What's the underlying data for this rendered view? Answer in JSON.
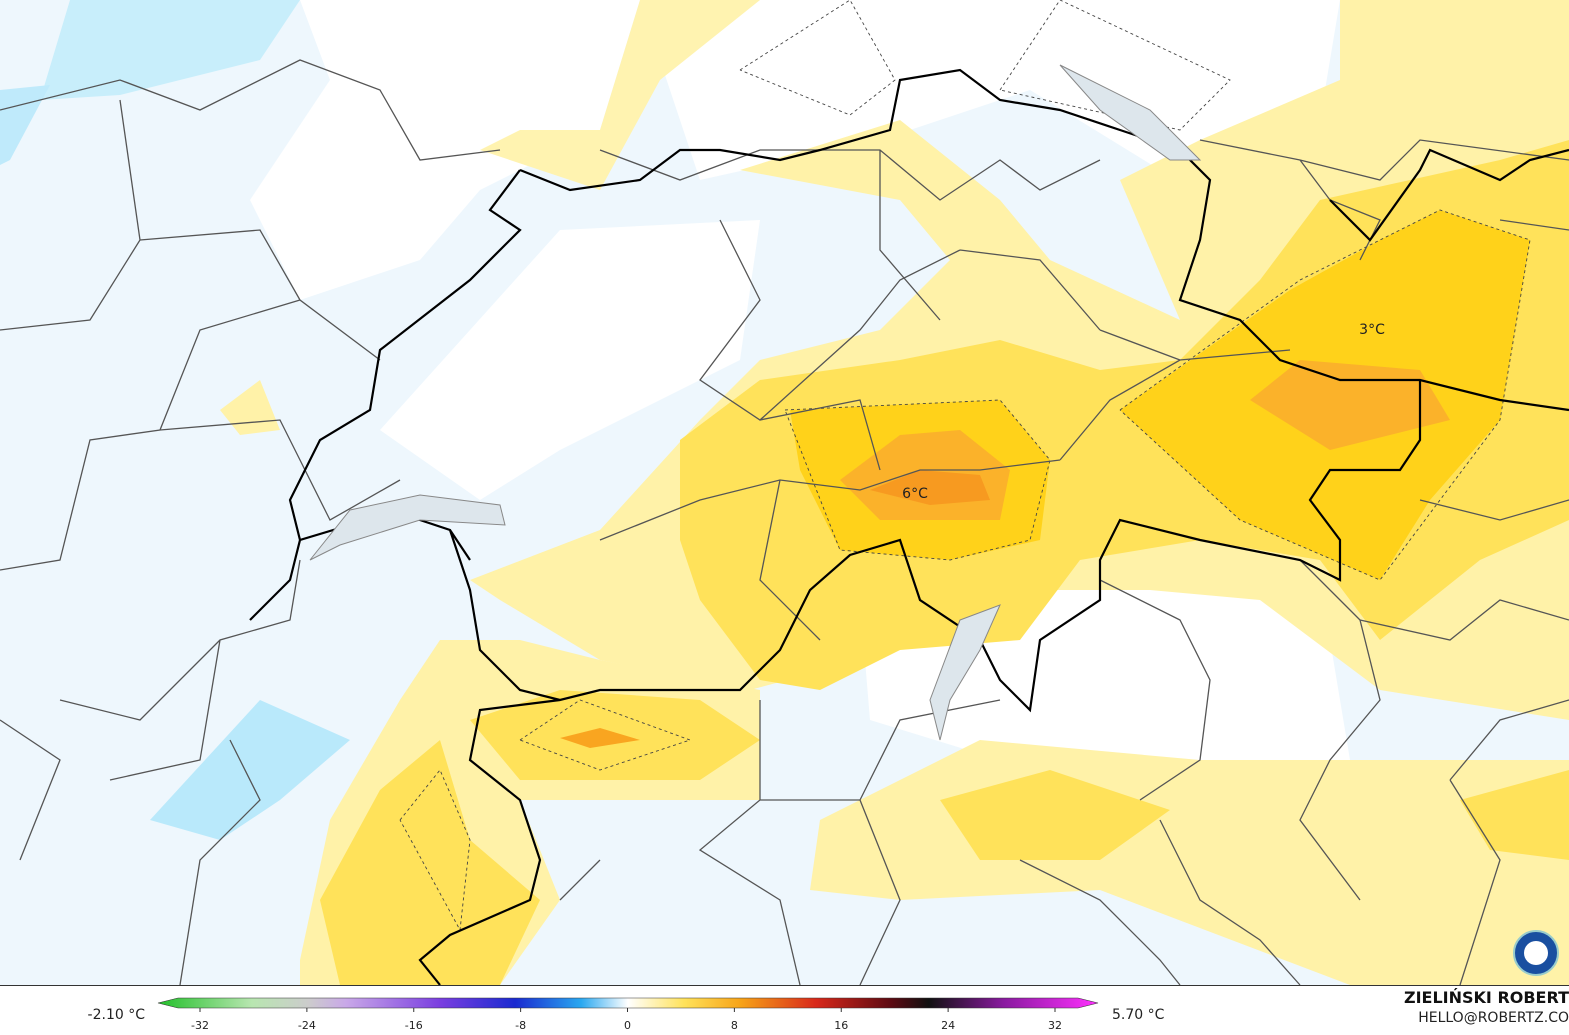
{
  "legend": {
    "min_label": "-2.10 °C",
    "max_label": "5.70 °C",
    "ticks": [
      -32,
      -24,
      -16,
      -8,
      0,
      8,
      16,
      24,
      32
    ]
  },
  "annotations": [
    "6°C",
    "3°C"
  ],
  "credit": {
    "name": "ZIELIŃSKI ROBERT",
    "contact": "HELLO@ROBERTZ.CO"
  }
}
